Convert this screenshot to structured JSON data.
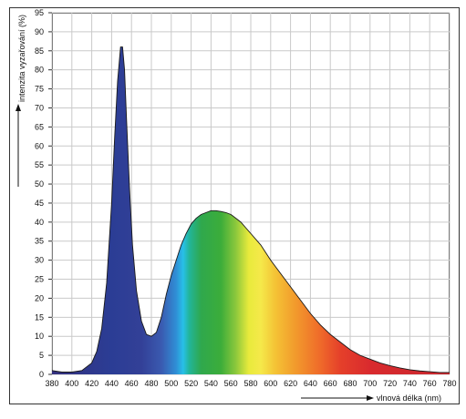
{
  "chart_data": {
    "type": "area",
    "title": "",
    "xlabel": "vlnová délka (nm)",
    "ylabel": "intenzita vyzařování (%)",
    "xlim": [
      380,
      780
    ],
    "ylim": [
      0,
      95
    ],
    "x_ticks": [
      380,
      400,
      420,
      440,
      460,
      480,
      500,
      520,
      540,
      560,
      580,
      600,
      620,
      640,
      660,
      680,
      700,
      720,
      740,
      760,
      780
    ],
    "y_ticks": [
      0,
      5,
      10,
      15,
      20,
      25,
      30,
      35,
      40,
      45,
      50,
      55,
      60,
      65,
      70,
      75,
      80,
      85,
      90,
      95
    ],
    "grid": true,
    "fill": "spectral",
    "series": [
      {
        "name": "",
        "x": [
          380,
          390,
          400,
          410,
          420,
          425,
          430,
          435,
          440,
          443,
          446,
          449,
          451,
          453,
          455,
          458,
          461,
          465,
          470,
          475,
          480,
          485,
          490,
          495,
          500,
          505,
          510,
          515,
          520,
          525,
          530,
          535,
          540,
          545,
          550,
          555,
          560,
          565,
          570,
          575,
          580,
          590,
          600,
          610,
          620,
          630,
          640,
          650,
          660,
          670,
          680,
          690,
          700,
          710,
          720,
          730,
          740,
          750,
          760,
          770,
          780
        ],
        "y": [
          1,
          0.6,
          0.6,
          1,
          3,
          6,
          12,
          24,
          45,
          62,
          77,
          86,
          86,
          80,
          67,
          49,
          34,
          22,
          14,
          10.5,
          10,
          11,
          15,
          21,
          26,
          30,
          34,
          37,
          39.5,
          41,
          42,
          42.5,
          43,
          43,
          42.8,
          42.5,
          42,
          41,
          40,
          38.5,
          37,
          34,
          30,
          26.5,
          23,
          19.5,
          16,
          13,
          10.5,
          8.5,
          6.5,
          5,
          4,
          3,
          2.3,
          1.7,
          1.2,
          0.9,
          0.7,
          0.5,
          0.5
        ]
      }
    ]
  }
}
